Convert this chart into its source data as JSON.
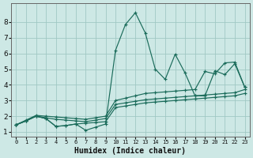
{
  "xlabel": "Humidex (Indice chaleur)",
  "background_color": "#cde8e5",
  "grid_color": "#a0c8c4",
  "line_color": "#1a6b5a",
  "xlim": [
    -0.5,
    23.5
  ],
  "ylim": [
    0.7,
    9.2
  ],
  "xticks": [
    0,
    1,
    2,
    3,
    4,
    5,
    6,
    7,
    8,
    9,
    10,
    11,
    12,
    13,
    14,
    15,
    16,
    17,
    18,
    19,
    20,
    21,
    22,
    23
  ],
  "yticks": [
    1,
    2,
    3,
    4,
    5,
    6,
    7,
    8
  ],
  "series": [
    {
      "x": [
        0,
        1,
        2,
        3,
        4,
        5,
        6,
        7,
        8,
        9,
        10,
        11,
        12,
        13,
        14,
        15,
        16,
        17,
        18,
        19,
        20,
        21,
        22,
        23
      ],
      "y": [
        1.45,
        1.7,
        2.0,
        1.85,
        1.35,
        1.4,
        1.5,
        1.55,
        1.6,
        1.65,
        2.55,
        2.65,
        2.75,
        2.85,
        2.9,
        2.95,
        3.0,
        3.05,
        3.1,
        3.15,
        3.2,
        3.25,
        3.3,
        3.45
      ]
    },
    {
      "x": [
        0,
        1,
        2,
        3,
        4,
        5,
        6,
        7,
        8,
        9,
        10,
        11,
        12,
        13,
        14,
        15,
        16,
        17,
        18,
        19,
        20,
        21,
        22,
        23
      ],
      "y": [
        1.45,
        1.7,
        2.0,
        1.9,
        1.8,
        1.75,
        1.7,
        1.65,
        1.75,
        1.85,
        2.75,
        2.85,
        2.95,
        3.05,
        3.1,
        3.15,
        3.2,
        3.25,
        3.3,
        3.35,
        3.4,
        3.45,
        3.5,
        3.7
      ]
    },
    {
      "x": [
        0,
        1,
        2,
        3,
        4,
        5,
        6,
        7,
        8,
        9,
        10,
        11,
        12,
        13,
        14,
        15,
        16,
        17,
        18,
        19,
        20,
        21,
        22,
        23
      ],
      "y": [
        1.45,
        1.75,
        2.05,
        2.0,
        1.95,
        1.9,
        1.85,
        1.8,
        1.9,
        2.0,
        3.0,
        3.15,
        3.3,
        3.45,
        3.5,
        3.55,
        3.6,
        3.65,
        3.7,
        4.85,
        4.7,
        5.4,
        5.45,
        3.85
      ]
    },
    {
      "x": [
        0,
        1,
        2,
        3,
        4,
        5,
        6,
        7,
        8,
        9,
        10,
        11,
        12,
        13,
        14,
        15,
        16,
        17,
        18,
        19,
        20,
        21,
        22,
        23
      ],
      "y": [
        1.45,
        1.7,
        2.0,
        1.85,
        1.35,
        1.4,
        1.5,
        1.1,
        1.3,
        1.5,
        6.2,
        7.85,
        8.6,
        7.3,
        5.0,
        4.35,
        5.95,
        4.75,
        3.3,
        3.3,
        4.9,
        4.65,
        5.35,
        3.85
      ]
    }
  ]
}
